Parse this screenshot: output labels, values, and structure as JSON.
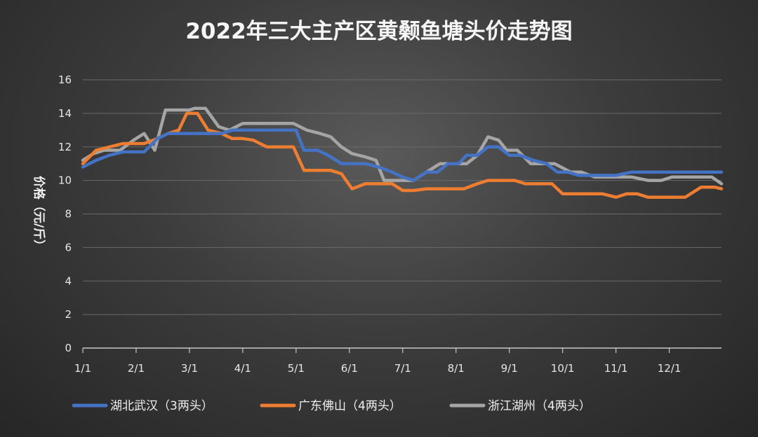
{
  "chart_data": {
    "type": "line",
    "title": "2022年三大主产区黄颡鱼塘头价走势图",
    "ylabel": "价格（元/斤）",
    "ylim": [
      0,
      16
    ],
    "yticks": [
      0,
      2,
      4,
      6,
      8,
      10,
      12,
      14,
      16
    ],
    "xlim": [
      1,
      12.98
    ],
    "xtick_positions": [
      1,
      2,
      3,
      4,
      5,
      6,
      7,
      8,
      9,
      10,
      11,
      12
    ],
    "xtick_labels": [
      "1/1",
      "2/1",
      "3/1",
      "4/1",
      "5/1",
      "6/1",
      "7/1",
      "8/1",
      "9/1",
      "10/1",
      "11/1",
      "12/1"
    ],
    "grid": true,
    "legend_position": "bottom",
    "series": [
      {
        "name": "湖北武汉（3两头）",
        "color": "#4472c4",
        "x": [
          1.0,
          1.25,
          1.5,
          1.75,
          2.0,
          2.15,
          2.4,
          2.6,
          2.8,
          3.0,
          3.2,
          3.4,
          3.6,
          3.8,
          4.0,
          4.2,
          4.4,
          4.6,
          4.8,
          5.0,
          5.15,
          5.4,
          5.6,
          5.85,
          6.05,
          6.3,
          6.55,
          6.8,
          7.0,
          7.2,
          7.45,
          7.65,
          7.85,
          8.05,
          8.2,
          8.4,
          8.6,
          8.8,
          9.0,
          9.2,
          9.45,
          9.7,
          9.9,
          10.1,
          10.3,
          10.55,
          10.8,
          11.0,
          11.3,
          11.6,
          11.9,
          12.2,
          12.5,
          12.75,
          12.98
        ],
        "values": [
          10.8,
          11.2,
          11.5,
          11.7,
          11.7,
          11.7,
          12.5,
          12.8,
          12.8,
          12.8,
          12.8,
          12.8,
          12.8,
          13.0,
          13.0,
          13.0,
          13.0,
          13.0,
          13.0,
          13.0,
          11.8,
          11.8,
          11.5,
          11.0,
          11.0,
          11.0,
          10.8,
          10.5,
          10.2,
          10.0,
          10.5,
          10.5,
          11.0,
          11.0,
          11.5,
          11.5,
          12.0,
          12.0,
          11.5,
          11.5,
          11.2,
          11.0,
          10.5,
          10.5,
          10.3,
          10.3,
          10.3,
          10.3,
          10.5,
          10.5,
          10.5,
          10.5,
          10.5,
          10.5,
          10.5
        ]
      },
      {
        "name": "广东佛山（4两头）",
        "color": "#ed7d31",
        "x": [
          1.0,
          1.25,
          1.5,
          1.75,
          2.0,
          2.15,
          2.4,
          2.6,
          2.8,
          2.95,
          3.15,
          3.35,
          3.6,
          3.8,
          4.0,
          4.2,
          4.45,
          4.7,
          4.95,
          5.15,
          5.4,
          5.65,
          5.85,
          6.05,
          6.3,
          6.55,
          6.8,
          7.0,
          7.2,
          7.45,
          7.7,
          7.95,
          8.15,
          8.4,
          8.6,
          8.85,
          9.1,
          9.3,
          9.55,
          9.8,
          10.0,
          10.25,
          10.5,
          10.75,
          11.0,
          11.2,
          11.4,
          11.6,
          11.85,
          12.1,
          12.3,
          12.6,
          12.85,
          12.98
        ],
        "values": [
          11.0,
          11.8,
          12.0,
          12.2,
          12.2,
          12.2,
          12.5,
          12.8,
          13.0,
          14.0,
          14.0,
          13.0,
          12.8,
          12.5,
          12.5,
          12.4,
          12.0,
          12.0,
          12.0,
          10.6,
          10.6,
          10.6,
          10.4,
          9.5,
          9.8,
          9.8,
          9.8,
          9.4,
          9.4,
          9.5,
          9.5,
          9.5,
          9.5,
          9.8,
          10.0,
          10.0,
          10.0,
          9.8,
          9.8,
          9.8,
          9.2,
          9.2,
          9.2,
          9.2,
          9.0,
          9.2,
          9.2,
          9.0,
          9.0,
          9.0,
          9.0,
          9.6,
          9.6,
          9.5
        ]
      },
      {
        "name": "浙江湖州（4两头）",
        "color": "#a5a5a5",
        "x": [
          1.0,
          1.2,
          1.4,
          1.7,
          1.95,
          2.15,
          2.35,
          2.55,
          2.8,
          3.0,
          3.1,
          3.3,
          3.55,
          3.75,
          4.0,
          4.25,
          4.5,
          4.75,
          4.95,
          5.2,
          5.45,
          5.65,
          5.85,
          6.05,
          6.3,
          6.5,
          6.65,
          6.95,
          7.2,
          7.45,
          7.7,
          7.95,
          8.2,
          8.4,
          8.6,
          8.8,
          8.95,
          9.15,
          9.4,
          9.65,
          9.85,
          10.15,
          10.35,
          10.6,
          10.8,
          11.0,
          11.3,
          11.6,
          11.85,
          12.05,
          12.3,
          12.55,
          12.8,
          12.98
        ],
        "values": [
          11.2,
          11.6,
          11.8,
          11.8,
          12.4,
          12.8,
          11.8,
          14.2,
          14.2,
          14.2,
          14.3,
          14.3,
          13.2,
          13.0,
          13.4,
          13.4,
          13.4,
          13.4,
          13.4,
          13.0,
          12.8,
          12.6,
          12.0,
          11.6,
          11.4,
          11.2,
          10.0,
          10.0,
          10.0,
          10.5,
          11.0,
          11.0,
          11.0,
          11.5,
          12.6,
          12.4,
          11.8,
          11.8,
          11.0,
          11.0,
          11.0,
          10.5,
          10.5,
          10.2,
          10.2,
          10.2,
          10.2,
          10.0,
          10.0,
          10.2,
          10.2,
          10.2,
          10.2,
          9.8
        ]
      }
    ]
  }
}
